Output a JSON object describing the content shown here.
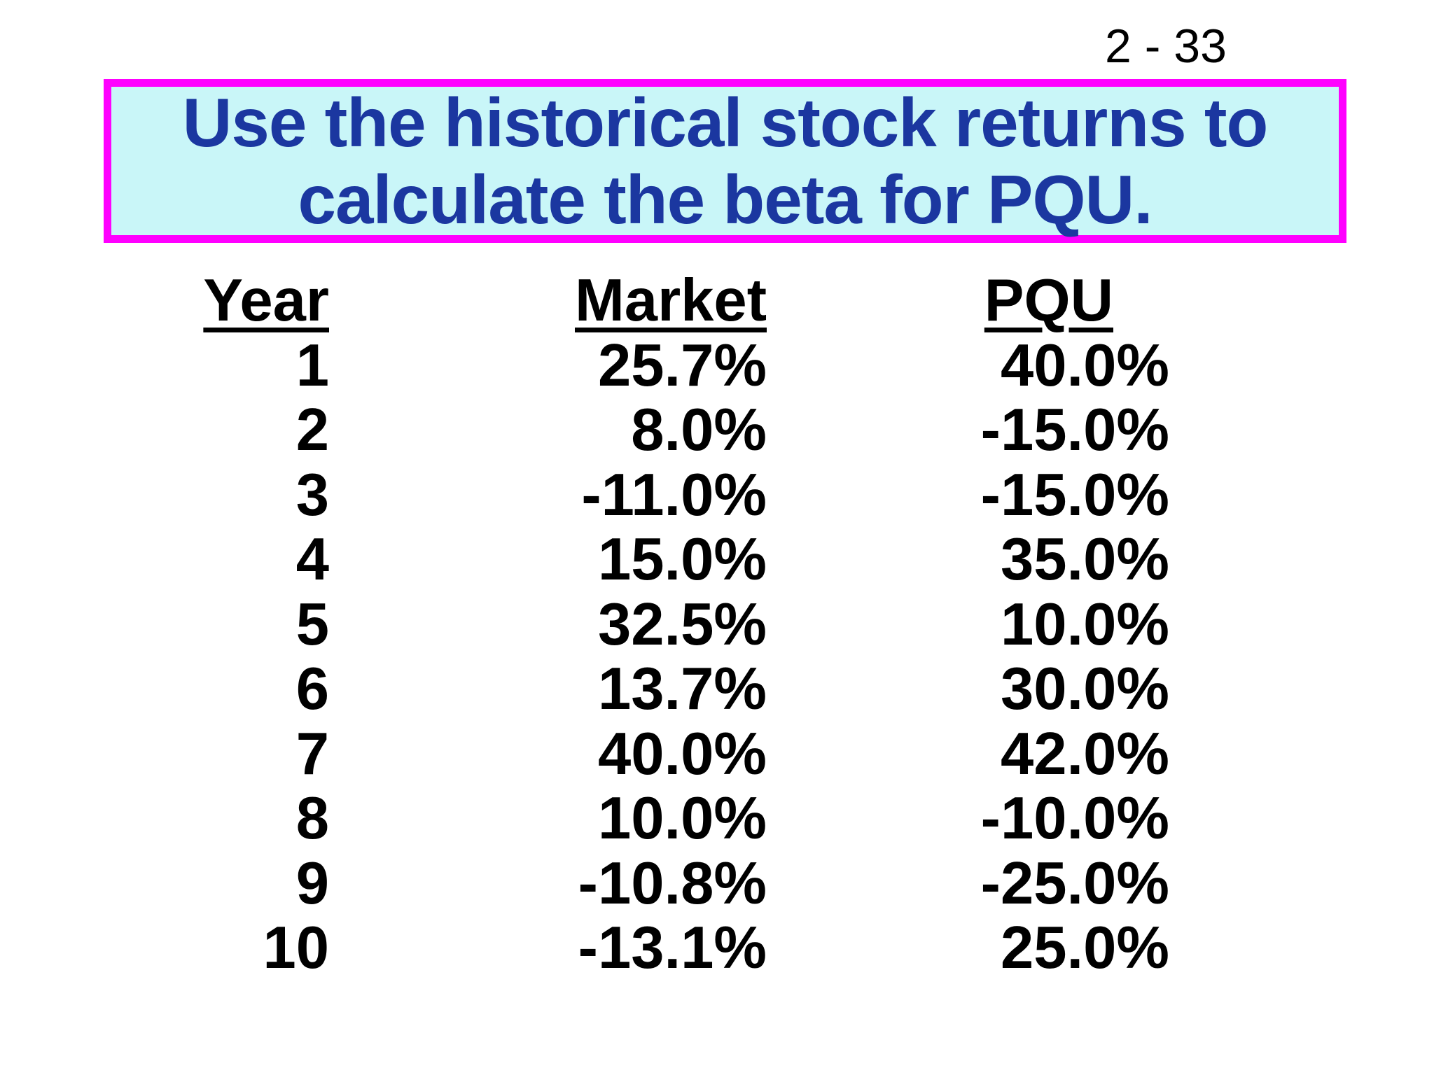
{
  "slide": {
    "page_number": "2 - 33",
    "title_line1": "Use the historical stock returns to",
    "title_line2": "calculate the beta for PQU.",
    "colors": {
      "page_background": "#ffffff",
      "title_text": "#1b37a0",
      "title_background": "#c9f6f8",
      "title_border": "#ff00ff",
      "table_text": "#000000"
    }
  },
  "table": {
    "headers": [
      "Year",
      "Market",
      "PQU"
    ],
    "rows": [
      {
        "year": "1",
        "market": "25.7%",
        "pqu": "40.0%"
      },
      {
        "year": "2",
        "market": "8.0%",
        "pqu": "-15.0%"
      },
      {
        "year": "3",
        "market": "-11.0%",
        "pqu": "-15.0%"
      },
      {
        "year": "4",
        "market": "15.0%",
        "pqu": "35.0%"
      },
      {
        "year": "5",
        "market": "32.5%",
        "pqu": "10.0%"
      },
      {
        "year": "6",
        "market": "13.7%",
        "pqu": "30.0%"
      },
      {
        "year": "7",
        "market": "40.0%",
        "pqu": "42.0%"
      },
      {
        "year": "8",
        "market": "10.0%",
        "pqu": "-10.0%"
      },
      {
        "year": "9",
        "market": "-10.8%",
        "pqu": "-25.0%"
      },
      {
        "year": "10",
        "market": "-13.1%",
        "pqu": "25.0%"
      }
    ]
  }
}
